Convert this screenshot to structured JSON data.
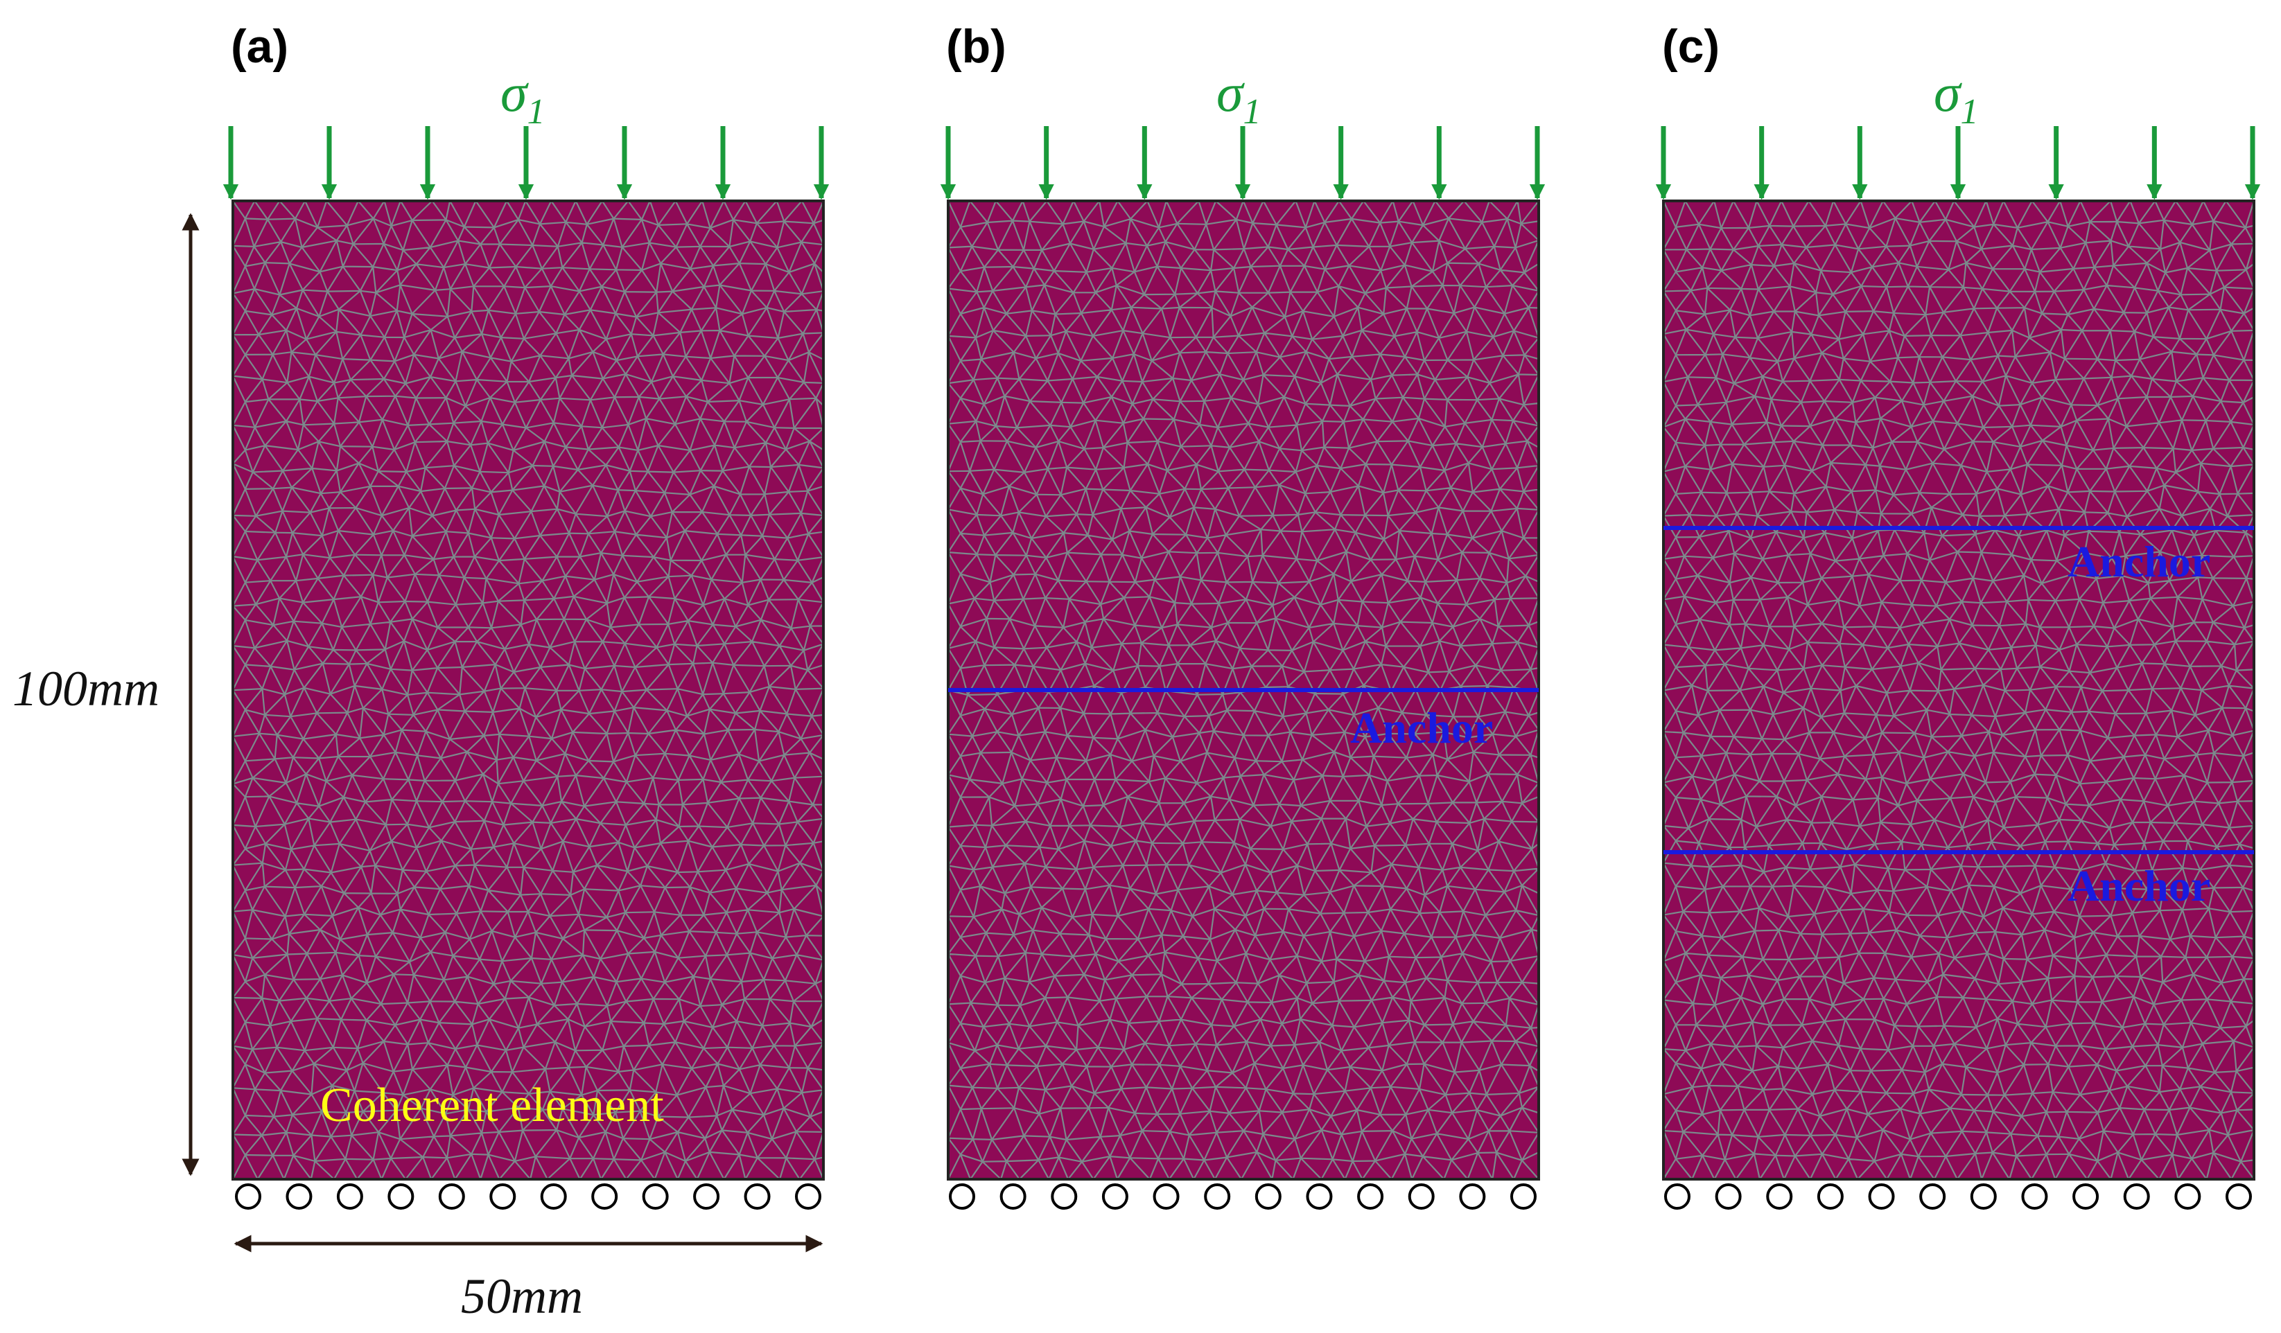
{
  "panels": [
    {
      "label": "(a)",
      "load_symbol": "σ",
      "load_subscript": "1",
      "anchors": [],
      "note": "Coherent element"
    },
    {
      "label": "(b)",
      "load_symbol": "σ",
      "load_subscript": "1",
      "anchors": [
        {
          "label": "Anchor",
          "height_fraction": 0.5
        }
      ],
      "note": ""
    },
    {
      "label": "(c)",
      "load_symbol": "σ",
      "load_subscript": "1",
      "anchors": [
        {
          "label": "Anchor",
          "height_fraction": 0.667
        },
        {
          "label": "Anchor",
          "height_fraction": 0.333
        }
      ],
      "note": ""
    }
  ],
  "dimensions": {
    "height": "100mm",
    "width": "50mm"
  },
  "colors": {
    "specimen_fill": "#8e0a56",
    "mesh_lines": "#7b8a8c",
    "load_arrows": "#1a9a3a",
    "anchor_lines": "#1a1adf",
    "roller_supports": "#000000"
  },
  "icons": {
    "load": "down-arrow-icon",
    "support": "roller-support-icon"
  }
}
